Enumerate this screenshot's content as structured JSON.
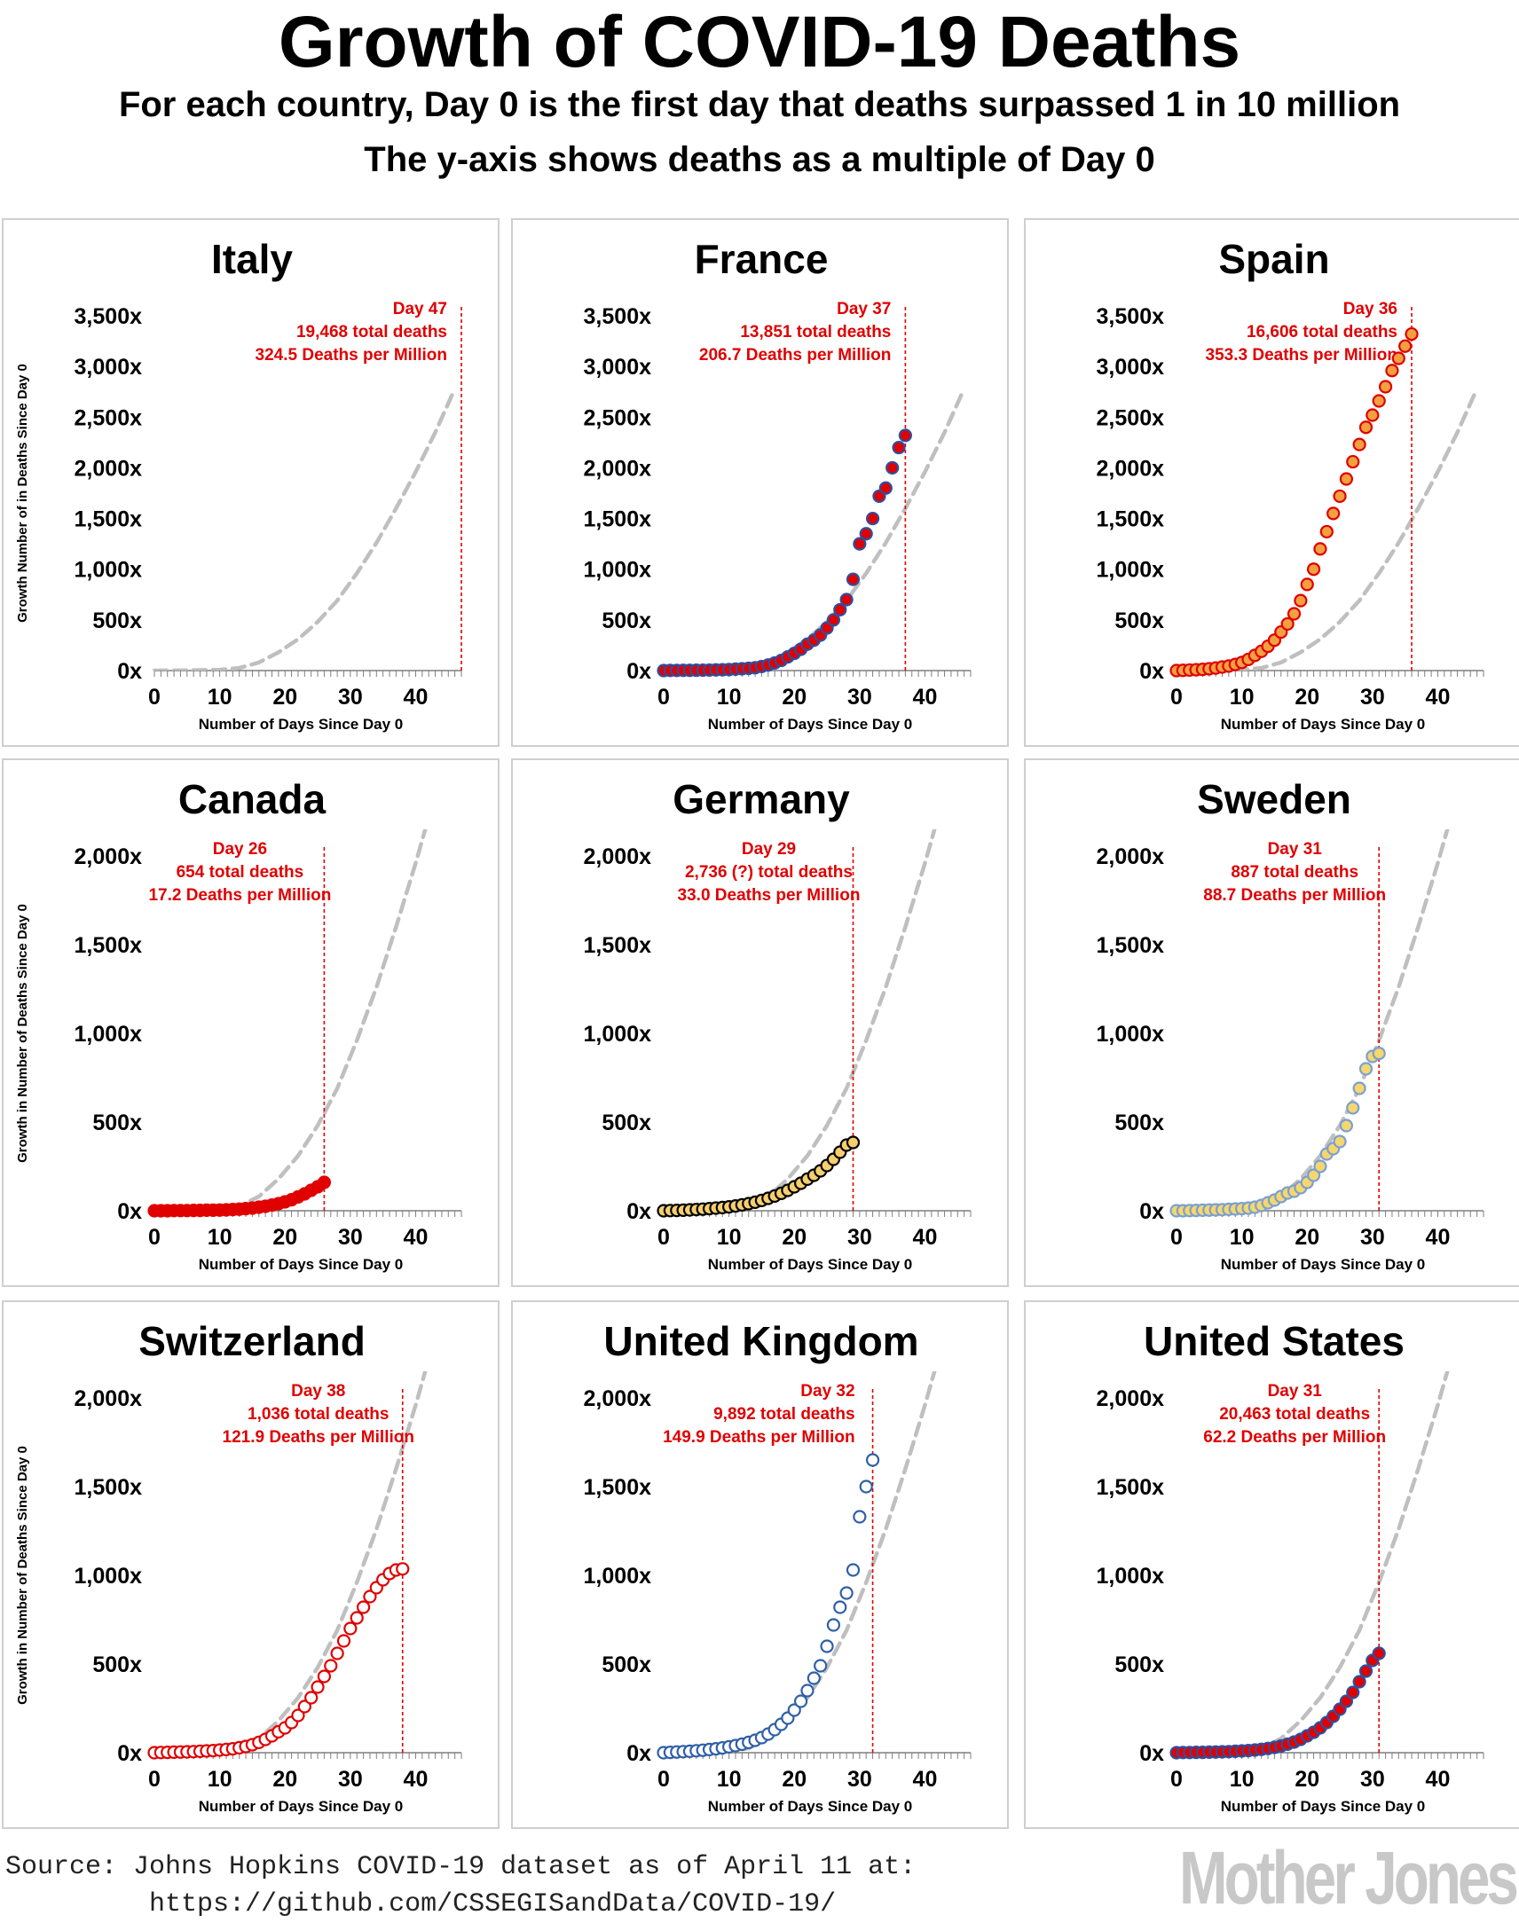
{
  "title": "Growth of COVID-19 Deaths",
  "subtitle_1": "For each country, Day 0 is the first day that deaths surpassed 1 in 10 million",
  "subtitle_2": "The y-axis shows deaths as a multiple of Day 0",
  "source_line_1": "Source: Johns Hopkins COVID-19 dataset as of April 11 at:",
  "source_line_2": "         https://github.com/CSSEGISandData/COVID-19/",
  "logo": "Mother Jones",
  "colors": {
    "reference_line": "#bfbfbf",
    "annotation": "#e00000",
    "text": "#000000"
  },
  "reference_curve": {
    "name": "",
    "x": [
      0,
      5,
      10,
      13,
      16,
      19,
      22,
      25,
      28,
      31,
      34,
      37,
      40,
      43,
      46
    ],
    "values": [
      0,
      2,
      8,
      25,
      80,
      180,
      310,
      480,
      690,
      960,
      1260,
      1600,
      1960,
      2350,
      2780
    ]
  },
  "chart_data": [
    {
      "type": "scatter",
      "country": "Italy",
      "title": "Italy",
      "xlabel": "Number of Days Since Day 0",
      "ylabel": "Growth Number of in Deaths Since Day 0",
      "ylim": [
        0,
        3500
      ],
      "xlim": [
        0,
        47
      ],
      "yticks": [
        "0x",
        "500x",
        "1,000x",
        "1,500x",
        "2,000x",
        "2,500x",
        "3,000x",
        "3,500x"
      ],
      "ytick_values": [
        0,
        500,
        1000,
        1500,
        2000,
        2500,
        3000,
        3500
      ],
      "xticks": [
        "0",
        "10",
        "20",
        "30",
        "40"
      ],
      "marker": {
        "fill": "none",
        "stroke": "none"
      },
      "x": [],
      "y": [],
      "day_marker": 47,
      "annotation": [
        "Day 47",
        "19,468 total deaths",
        "324.5 Deaths per Million"
      ]
    },
    {
      "type": "scatter",
      "country": "France",
      "title": "France",
      "xlabel": "Number of Days Since Day 0",
      "ylabel": "",
      "ylim": [
        0,
        3500
      ],
      "xlim": [
        0,
        47
      ],
      "yticks": [
        "0x",
        "500x",
        "1,000x",
        "1,500x",
        "2,000x",
        "2,500x",
        "3,000x",
        "3,500x"
      ],
      "ytick_values": [
        0,
        500,
        1000,
        1500,
        2000,
        2500,
        3000,
        3500
      ],
      "xticks": [
        "0",
        "10",
        "20",
        "30",
        "40"
      ],
      "marker": {
        "fill": "#e00000",
        "stroke": "#2f4f9f"
      },
      "x": [
        0,
        1,
        2,
        3,
        4,
        5,
        6,
        7,
        8,
        9,
        10,
        11,
        12,
        13,
        14,
        15,
        16,
        17,
        18,
        19,
        20,
        21,
        22,
        23,
        24,
        25,
        26,
        27,
        28,
        29,
        30,
        31,
        32,
        33,
        34,
        35,
        36,
        37
      ],
      "y": [
        0,
        1,
        1,
        2,
        2,
        3,
        4,
        5,
        7,
        8,
        10,
        14,
        18,
        22,
        28,
        40,
        55,
        75,
        100,
        135,
        170,
        210,
        260,
        300,
        350,
        420,
        500,
        600,
        700,
        900,
        1250,
        1350,
        1500,
        1720,
        1800,
        2000,
        2200,
        2320
      ],
      "day_marker": 37,
      "annotation": [
        "Day 37",
        "13,851 total deaths",
        "206.7 Deaths per Million"
      ]
    },
    {
      "type": "scatter",
      "country": "Spain",
      "title": "Spain",
      "xlabel": "Number of Days Since Day 0",
      "ylabel": "",
      "ylim": [
        0,
        3500
      ],
      "xlim": [
        0,
        47
      ],
      "yticks": [
        "0x",
        "500x",
        "1,000x",
        "1,500x",
        "2,000x",
        "2,500x",
        "3,000x",
        "3,500x"
      ],
      "ytick_values": [
        0,
        500,
        1000,
        1500,
        2000,
        2500,
        3000,
        3500
      ],
      "xticks": [
        "0",
        "10",
        "20",
        "30",
        "40"
      ],
      "marker": {
        "fill": "#f2a040",
        "stroke": "#e00000"
      },
      "x": [
        0,
        1,
        2,
        3,
        4,
        5,
        6,
        7,
        8,
        9,
        10,
        11,
        12,
        13,
        14,
        15,
        16,
        17,
        18,
        19,
        20,
        21,
        22,
        23,
        24,
        25,
        26,
        27,
        28,
        29,
        30,
        31,
        32,
        33,
        34,
        35,
        36
      ],
      "y": [
        0,
        2,
        5,
        8,
        12,
        18,
        25,
        35,
        45,
        60,
        80,
        110,
        150,
        190,
        240,
        300,
        380,
        460,
        560,
        690,
        850,
        1000,
        1200,
        1370,
        1550,
        1720,
        1890,
        2060,
        2230,
        2400,
        2520,
        2660,
        2800,
        2960,
        3080,
        3200,
        3320
      ],
      "day_marker": 36,
      "annotation": [
        "Day 36",
        "16,606 total deaths",
        "353.3 Deaths per Million"
      ]
    },
    {
      "type": "scatter",
      "country": "Canada",
      "title": "Canada",
      "xlabel": "Number of Days Since Day 0",
      "ylabel": "Growth in Number of Deaths Since Day 0",
      "ylim": [
        0,
        2000
      ],
      "xlim": [
        0,
        47
      ],
      "yticks": [
        "0x",
        "500x",
        "1,000x",
        "1,500x",
        "2,000x"
      ],
      "ytick_values": [
        0,
        500,
        1000,
        1500,
        2000
      ],
      "xticks": [
        "0",
        "10",
        "20",
        "30",
        "40"
      ],
      "marker": {
        "fill": "#e00000",
        "stroke": "#e00000"
      },
      "x": [
        0,
        1,
        2,
        3,
        4,
        5,
        6,
        7,
        8,
        9,
        10,
        11,
        12,
        13,
        14,
        15,
        16,
        17,
        18,
        19,
        20,
        21,
        22,
        23,
        24,
        25,
        26
      ],
      "y": [
        0,
        0,
        0,
        1,
        1,
        1,
        2,
        2,
        3,
        3,
        4,
        5,
        7,
        9,
        12,
        15,
        20,
        25,
        32,
        40,
        50,
        62,
        78,
        95,
        115,
        135,
        160
      ],
      "day_marker": 26,
      "annotation": [
        "Day 26",
        "654 total deaths",
        "17.2 Deaths per Million"
      ]
    },
    {
      "type": "scatter",
      "country": "Germany",
      "title": "Germany",
      "xlabel": "Number of Days Since Day 0",
      "ylabel": "",
      "ylim": [
        0,
        2000
      ],
      "xlim": [
        0,
        47
      ],
      "yticks": [
        "0x",
        "500x",
        "1,000x",
        "1,500x",
        "2,000x"
      ],
      "ytick_values": [
        0,
        500,
        1000,
        1500,
        2000
      ],
      "xticks": [
        "0",
        "10",
        "20",
        "30",
        "40"
      ],
      "marker": {
        "fill": "#f5cf6e",
        "stroke": "#000000"
      },
      "x": [
        0,
        1,
        2,
        3,
        4,
        5,
        6,
        7,
        8,
        9,
        10,
        11,
        12,
        13,
        14,
        15,
        16,
        17,
        18,
        19,
        20,
        21,
        22,
        23,
        24,
        25,
        26,
        27,
        28,
        29
      ],
      "y": [
        0,
        1,
        2,
        3,
        5,
        7,
        9,
        12,
        15,
        18,
        22,
        27,
        33,
        40,
        48,
        58,
        70,
        83,
        98,
        115,
        135,
        155,
        178,
        200,
        225,
        255,
        290,
        330,
        370,
        385
      ],
      "day_marker": 29,
      "annotation": [
        "Day 29",
        "2,736 (?) total deaths",
        "33.0 Deaths per Million"
      ]
    },
    {
      "type": "scatter",
      "country": "Sweden",
      "title": "Sweden",
      "xlabel": "Number of Days Since Day 0",
      "ylabel": "",
      "ylim": [
        0,
        2000
      ],
      "xlim": [
        0,
        47
      ],
      "yticks": [
        "0x",
        "500x",
        "1,000x",
        "1,500x",
        "2,000x"
      ],
      "ytick_values": [
        0,
        500,
        1000,
        1500,
        2000
      ],
      "xticks": [
        "0",
        "10",
        "20",
        "30",
        "40"
      ],
      "marker": {
        "fill": "#f5d76e",
        "stroke": "#7a9fd4"
      },
      "x": [
        0,
        1,
        2,
        3,
        4,
        5,
        6,
        7,
        8,
        9,
        10,
        11,
        12,
        13,
        14,
        15,
        16,
        17,
        18,
        19,
        20,
        21,
        22,
        23,
        24,
        25,
        26,
        27,
        28,
        29,
        30,
        31
      ],
      "y": [
        0,
        0,
        1,
        2,
        3,
        4,
        5,
        6,
        8,
        10,
        12,
        15,
        20,
        30,
        45,
        60,
        80,
        100,
        110,
        130,
        160,
        200,
        250,
        320,
        350,
        390,
        480,
        580,
        690,
        800,
        870,
        887
      ],
      "day_marker": 31,
      "annotation": [
        "Day 31",
        "887 total deaths",
        "88.7 Deaths per Million"
      ]
    },
    {
      "type": "scatter",
      "country": "Switzerland",
      "title": "Switzerland",
      "xlabel": "Number of Days Since Day 0",
      "ylabel": "Growth in Number of Deaths Since Day 0",
      "ylim": [
        0,
        2000
      ],
      "xlim": [
        0,
        47
      ],
      "yticks": [
        "0x",
        "500x",
        "1,000x",
        "1,500x",
        "2,000x"
      ],
      "ytick_values": [
        0,
        500,
        1000,
        1500,
        2000
      ],
      "xticks": [
        "0",
        "10",
        "20",
        "30",
        "40"
      ],
      "marker": {
        "fill": "#ffffff",
        "stroke": "#e00000"
      },
      "x": [
        0,
        1,
        2,
        3,
        4,
        5,
        6,
        7,
        8,
        9,
        10,
        11,
        12,
        13,
        14,
        15,
        16,
        17,
        18,
        19,
        20,
        21,
        22,
        23,
        24,
        25,
        26,
        27,
        28,
        29,
        30,
        31,
        32,
        33,
        34,
        35,
        36,
        37,
        38
      ],
      "y": [
        0,
        1,
        2,
        3,
        4,
        5,
        6,
        8,
        10,
        12,
        15,
        18,
        22,
        28,
        35,
        45,
        58,
        75,
        95,
        118,
        140,
        170,
        210,
        260,
        310,
        370,
        430,
        490,
        560,
        630,
        700,
        760,
        820,
        880,
        930,
        975,
        1010,
        1030,
        1036
      ],
      "day_marker": 38,
      "annotation": [
        "Day 38",
        "1,036 total deaths",
        "121.9 Deaths per Million"
      ]
    },
    {
      "type": "scatter",
      "country": "United Kingdom",
      "title": "United Kingdom",
      "xlabel": "Number of Days Since Day 0",
      "ylabel": "",
      "ylim": [
        0,
        2000
      ],
      "xlim": [
        0,
        47
      ],
      "yticks": [
        "0x",
        "500x",
        "1,000x",
        "1,500x",
        "2,000x"
      ],
      "ytick_values": [
        0,
        500,
        1000,
        1500,
        2000
      ],
      "xticks": [
        "0",
        "10",
        "20",
        "30",
        "40"
      ],
      "marker": {
        "fill": "#ffffff",
        "stroke": "#2f5fa8"
      },
      "x": [
        0,
        1,
        2,
        3,
        4,
        5,
        6,
        7,
        8,
        9,
        10,
        11,
        12,
        13,
        14,
        15,
        16,
        17,
        18,
        19,
        20,
        21,
        22,
        23,
        24,
        25,
        26,
        27,
        28,
        29,
        30,
        31,
        32
      ],
      "y": [
        0,
        2,
        4,
        6,
        8,
        11,
        14,
        18,
        22,
        27,
        33,
        40,
        48,
        58,
        70,
        85,
        105,
        130,
        160,
        195,
        240,
        290,
        350,
        420,
        490,
        600,
        720,
        820,
        900,
        1030,
        1330,
        1500,
        1650
      ],
      "day_marker": 32,
      "annotation": [
        "Day 32",
        "9,892 total deaths",
        "149.9 Deaths per Million"
      ]
    },
    {
      "type": "scatter",
      "country": "United States",
      "title": "United States",
      "xlabel": "Number of Days Since Day 0",
      "ylabel": "",
      "ylim": [
        0,
        2000
      ],
      "xlim": [
        0,
        47
      ],
      "yticks": [
        "0x",
        "500x",
        "1,000x",
        "1,500x",
        "2,000x"
      ],
      "ytick_values": [
        0,
        500,
        1000,
        1500,
        2000
      ],
      "xticks": [
        "0",
        "10",
        "20",
        "30",
        "40"
      ],
      "marker": {
        "fill": "#e00000",
        "stroke": "#2f4f9f"
      },
      "x": [
        0,
        1,
        2,
        3,
        4,
        5,
        6,
        7,
        8,
        9,
        10,
        11,
        12,
        13,
        14,
        15,
        16,
        17,
        18,
        19,
        20,
        21,
        22,
        23,
        24,
        25,
        26,
        27,
        28,
        29,
        30,
        31
      ],
      "y": [
        0,
        1,
        1,
        2,
        2,
        3,
        4,
        5,
        6,
        8,
        10,
        12,
        15,
        19,
        24,
        30,
        38,
        48,
        60,
        75,
        95,
        115,
        140,
        170,
        205,
        245,
        290,
        340,
        400,
        460,
        520,
        560
      ],
      "day_marker": 31,
      "annotation": [
        "Day 31",
        "20,463 total deaths",
        "62.2 Deaths per Million"
      ]
    }
  ]
}
